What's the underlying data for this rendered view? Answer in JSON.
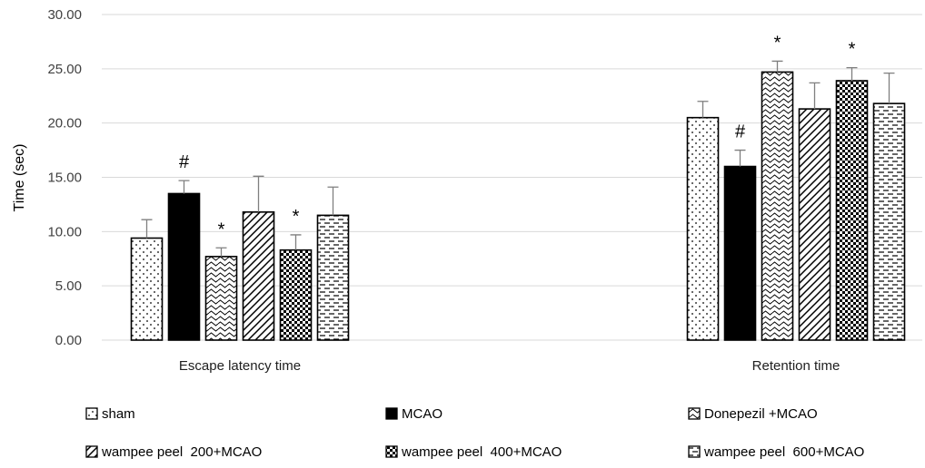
{
  "chart_data": {
    "type": "bar",
    "title": "",
    "xlabel": "",
    "ylabel": "Time (sec)",
    "ylim": [
      0,
      30
    ],
    "yticks": [
      "0.00",
      "5.00",
      "10.00",
      "15.00",
      "20.00",
      "25.00",
      "30.00"
    ],
    "grid": true,
    "legend_position": "bottom",
    "categories": [
      "Escape latency time",
      "Retention time"
    ],
    "series": [
      {
        "name": "sham",
        "pattern": "dots",
        "values": [
          9.4,
          20.5
        ],
        "errors": [
          1.7,
          1.5
        ],
        "annotations": [
          "",
          ""
        ]
      },
      {
        "name": "MCAO",
        "pattern": "solid",
        "values": [
          13.5,
          16.0
        ],
        "errors": [
          1.2,
          1.5
        ],
        "annotations": [
          "#",
          "#"
        ]
      },
      {
        "name": "Donepezil +MCAO",
        "pattern": "waves",
        "values": [
          7.7,
          24.7
        ],
        "errors": [
          0.8,
          1.0
        ],
        "annotations": [
          "*",
          "*"
        ]
      },
      {
        "name": "wampee peel  200+MCAO",
        "pattern": "diagonal",
        "values": [
          11.8,
          21.3
        ],
        "errors": [
          3.3,
          2.4
        ],
        "annotations": [
          "",
          ""
        ]
      },
      {
        "name": "wampee peel  400+MCAO",
        "pattern": "checker",
        "values": [
          8.3,
          23.9
        ],
        "errors": [
          1.4,
          1.2
        ],
        "annotations": [
          "*",
          "*"
        ]
      },
      {
        "name": "wampee peel  600+MCAO",
        "pattern": "dashes",
        "values": [
          11.5,
          21.8
        ],
        "errors": [
          2.6,
          2.8
        ],
        "annotations": [
          "",
          ""
        ]
      }
    ]
  }
}
